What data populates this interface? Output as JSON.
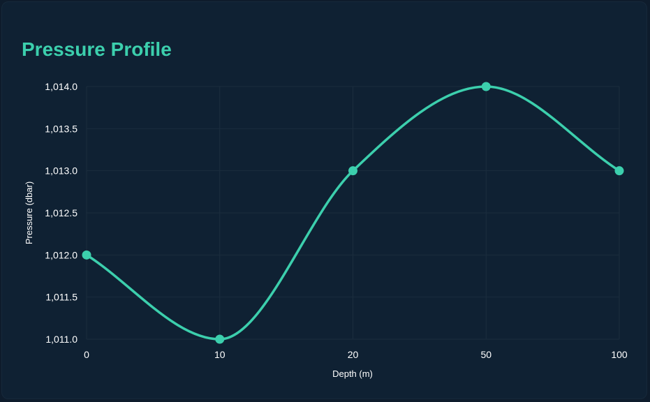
{
  "chart_data": {
    "type": "line",
    "title": "Pressure Profile",
    "xlabel": "Depth (m)",
    "ylabel": "Pressure (dbar)",
    "categories": [
      "0",
      "10",
      "20",
      "50",
      "100"
    ],
    "series": [
      {
        "values": [
          1012.0,
          1011.0,
          1013.0,
          1014.0,
          1013.0
        ]
      }
    ],
    "ylim": [
      1011.0,
      1014.0
    ],
    "yticks": [
      "1,011.0",
      "1,011.5",
      "1,012.0",
      "1,012.5",
      "1,013.0",
      "1,013.5",
      "1,014.0"
    ],
    "grid": true,
    "legend": "none",
    "colors": {
      "line": "#3ccfad",
      "title": "#3ccfad",
      "grid": "#1b2d3e",
      "background": "#0f2133"
    }
  }
}
